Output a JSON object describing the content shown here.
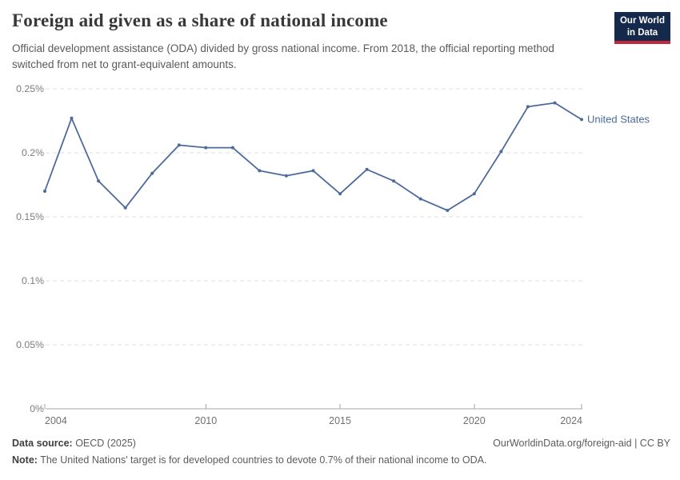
{
  "header": {
    "title": "Foreign aid given as a share of national income",
    "subtitle": "Official development assistance (ODA) divided by gross national income. From 2018, the official reporting method switched from net to grant-equivalent amounts.",
    "logo": {
      "line1": "Our World",
      "line2": "in Data"
    }
  },
  "chart_data": {
    "type": "line",
    "title": "Foreign aid given as a share of national income",
    "x": [
      2004,
      2005,
      2006,
      2007,
      2008,
      2009,
      2010,
      2011,
      2012,
      2013,
      2014,
      2015,
      2016,
      2017,
      2018,
      2019,
      2020,
      2021,
      2022,
      2023,
      2024
    ],
    "series": [
      {
        "name": "United States",
        "values": [
          0.17,
          0.227,
          0.178,
          0.157,
          0.184,
          0.206,
          0.204,
          0.204,
          0.186,
          0.182,
          0.186,
          0.168,
          0.187,
          0.178,
          0.164,
          0.155,
          0.168,
          0.201,
          0.236,
          0.239,
          0.226
        ]
      }
    ],
    "xlabel": "",
    "ylabel": "",
    "unit": "%",
    "ylim": [
      0,
      0.25
    ],
    "x_ticks": [
      2004,
      2010,
      2015,
      2020,
      2024
    ],
    "y_ticks": [
      0,
      0.05,
      0.1,
      0.15,
      0.2,
      0.25
    ],
    "y_tick_labels": [
      "0%",
      "0.05%",
      "0.1%",
      "0.15%",
      "0.2%",
      "0.25%"
    ],
    "grid": "horizontal dashed gridlines",
    "legend_position": "label at end of line"
  },
  "footer": {
    "data_source_label": "Data source:",
    "data_source_value": " OECD (2025)",
    "attribution": "OurWorldinData.org/foreign-aid | CC BY",
    "note_label": "Note:",
    "note_value": " The United Nations' target is for developed countries to devote 0.7% of their national income to ODA."
  },
  "colors": {
    "line": "#4c6a9c",
    "grid": "#dcdcdc",
    "axis": "#a6a6a6",
    "y_tick_text": "#7c7c7c",
    "x_tick_text": "#6f6f6f",
    "logo_bg": "#15294d",
    "logo_red": "#c0293a"
  }
}
